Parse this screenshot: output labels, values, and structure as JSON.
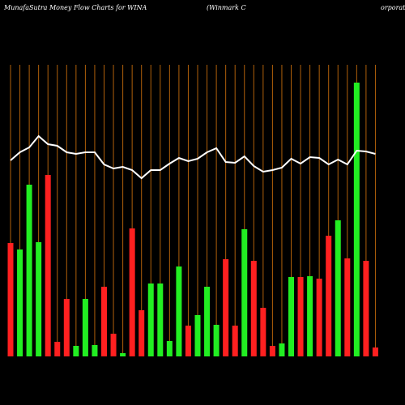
{
  "chart_data": {
    "type": "bar",
    "title": "MunafaSutra  Money Flow  Charts for WINA",
    "subtitle": "(Winmark C",
    "subtitle_right": "orporati",
    "categories": [
      null,
      null,
      null,
      null,
      null,
      null,
      null,
      null,
      null,
      null,
      null,
      null,
      null,
      null,
      null,
      null,
      null,
      null,
      null,
      null,
      null,
      null,
      null,
      null,
      null,
      null,
      null,
      null,
      null,
      null,
      null,
      null,
      null,
      null,
      null,
      null,
      null,
      null,
      null,
      null
    ],
    "ylim": [
      0,
      360
    ],
    "series": [
      {
        "type": "bar",
        "values": [
          140,
          132,
          212,
          141,
          224,
          18,
          71,
          13,
          71,
          14,
          86,
          28,
          4,
          158,
          57,
          90,
          90,
          19,
          111,
          38,
          51,
          86,
          39,
          120,
          38,
          157,
          118,
          60,
          13,
          16,
          98,
          98,
          99,
          96,
          149,
          168,
          121,
          338,
          118,
          11
        ],
        "colors": [
          "#ff2020",
          "#22ee22",
          "#22ee22",
          "#22ee22",
          "#ff2020",
          "#ff2020",
          "#ff2020",
          "#22ee22",
          "#22ee22",
          "#22ee22",
          "#ff2020",
          "#ff2020",
          "#22ee22",
          "#ff2020",
          "#ff2020",
          "#22ee22",
          "#22ee22",
          "#22ee22",
          "#22ee22",
          "#ff2020",
          "#22ee22",
          "#22ee22",
          "#22ee22",
          "#ff2020",
          "#ff2020",
          "#22ee22",
          "#ff2020",
          "#ff2020",
          "#ff2020",
          "#22ee22",
          "#22ee22",
          "#ff2020",
          "#22ee22",
          "#ff2020",
          "#ff2020",
          "#22ee22",
          "#ff2020",
          "#22ee22",
          "#ff2020",
          "#ff2020"
        ]
      },
      {
        "type": "line",
        "color": "#ffffff",
        "values": [
          242,
          252,
          258,
          272,
          262,
          260,
          252,
          250,
          252,
          252,
          237,
          232,
          234,
          230,
          220,
          230,
          230,
          238,
          245,
          241,
          244,
          252,
          257,
          240,
          239,
          247,
          235,
          228,
          230,
          233,
          244,
          238,
          246,
          245,
          237,
          243,
          237,
          254,
          253,
          250
        ]
      }
    ]
  }
}
